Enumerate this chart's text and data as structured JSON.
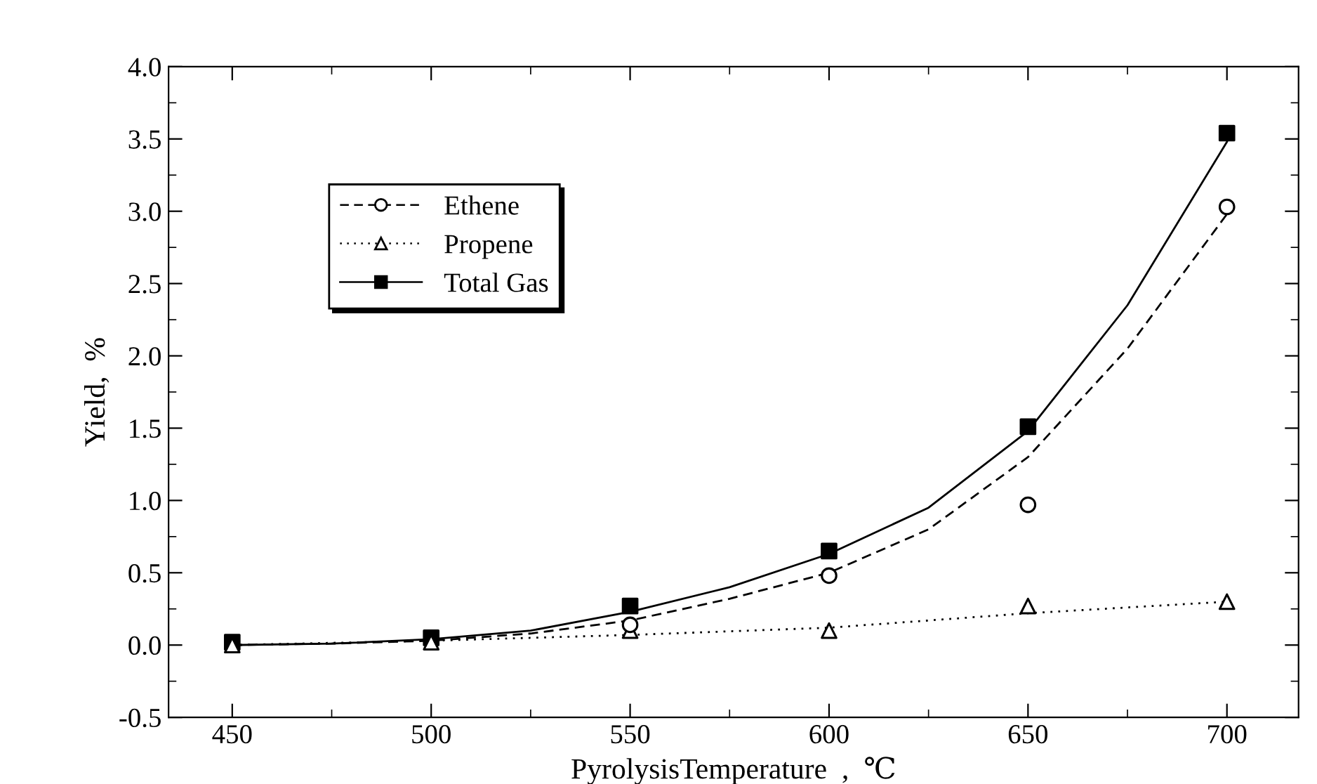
{
  "chart_data": {
    "type": "scatter",
    "xlabel": "PyrolysisTemperature  ,  ℃",
    "ylabel": "Yield,  %",
    "xlim": [
      434,
      718
    ],
    "ylim": [
      -0.5,
      4.0
    ],
    "xticks": [
      450,
      500,
      550,
      600,
      650,
      700
    ],
    "yticks": [
      {
        "value": -0.5,
        "label": "-0.5"
      },
      {
        "value": 0,
        "label": "0.0"
      },
      {
        "value": 0.5,
        "label": "0.5"
      },
      {
        "value": 1,
        "label": "1.0"
      },
      {
        "value": 1.5,
        "label": "1.5"
      },
      {
        "value": 2,
        "label": "2.0"
      },
      {
        "value": 2.5,
        "label": "2.5"
      },
      {
        "value": 3,
        "label": "3.0"
      },
      {
        "value": 3.5,
        "label": "3.5"
      },
      {
        "value": 4,
        "label": "4.0"
      }
    ],
    "grid": false,
    "legend": "top left",
    "series": [
      {
        "name": "Ethene",
        "marker": "circle",
        "line_style": "dashed",
        "color": "#000000",
        "x": [
          550,
          600,
          650,
          700
        ],
        "values": [
          0.14,
          0.48,
          0.97,
          3.03
        ]
      },
      {
        "name": "Propene",
        "marker": "triangle",
        "line_style": "dotted",
        "color": "#000000",
        "x": [
          450,
          500,
          550,
          600,
          650,
          700
        ],
        "values": [
          0.0,
          0.02,
          0.1,
          0.1,
          0.27,
          0.3
        ]
      },
      {
        "name": "Total Gas",
        "marker": "square",
        "line_style": "solid",
        "color": "#000000",
        "x": [
          450,
          500,
          550,
          600,
          650,
          700
        ],
        "values": [
          0.02,
          0.05,
          0.27,
          0.65,
          1.51,
          3.54
        ]
      },
      {
        "type": "line",
        "line_style": "dashed",
        "color": "#000000",
        "x": [
          450,
          475,
          500,
          525,
          550,
          575,
          600,
          625,
          650,
          675,
          700
        ],
        "values": [
          0.0,
          0.01,
          0.03,
          0.08,
          0.17,
          0.32,
          0.5,
          0.8,
          1.3,
          2.05,
          2.98
        ]
      },
      {
        "type": "line",
        "line_style": "dotted",
        "color": "#000000",
        "x": [
          450,
          500,
          550,
          600,
          650,
          700
        ],
        "values": [
          0.0,
          0.03,
          0.07,
          0.12,
          0.22,
          0.3
        ]
      },
      {
        "type": "line",
        "line_style": "solid",
        "color": "#000000",
        "x": [
          450,
          475,
          500,
          525,
          550,
          575,
          600,
          625,
          650,
          675,
          700
        ],
        "values": [
          0.0,
          0.01,
          0.04,
          0.1,
          0.23,
          0.4,
          0.63,
          0.95,
          1.48,
          2.35,
          3.48
        ]
      }
    ]
  }
}
